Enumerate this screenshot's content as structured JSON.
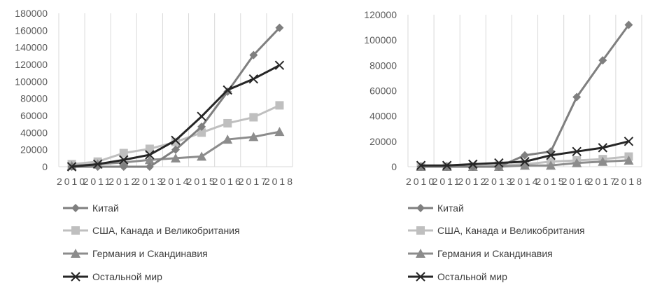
{
  "chart_data": [
    {
      "type": "line",
      "categories": [
        "2010",
        "2011",
        "2012",
        "2013",
        "2014",
        "2015",
        "2016",
        "2017",
        "2018"
      ],
      "ylim": [
        0,
        180000
      ],
      "yticks": [
        0,
        20000,
        40000,
        60000,
        80000,
        100000,
        120000,
        140000,
        160000,
        180000
      ],
      "grid": "vertical",
      "legend_position": "bottom",
      "series": [
        {
          "name": "Китай",
          "marker": "diamond",
          "color": "#7f7f7f",
          "values": [
            0,
            0,
            0,
            0,
            20000,
            47000,
            88000,
            131000,
            163000
          ]
        },
        {
          "name": "США, Канада и Великобритания",
          "marker": "square",
          "color": "#bfbfbf",
          "values": [
            3000,
            6000,
            16000,
            21000,
            29000,
            40000,
            51000,
            58000,
            72000
          ]
        },
        {
          "name": "Германия и Скандинавия",
          "marker": "triangle",
          "color": "#8c8c8c",
          "values": [
            1000,
            3000,
            5000,
            8000,
            10000,
            12000,
            32000,
            35000,
            41000
          ]
        },
        {
          "name": "Остальной мир",
          "marker": "x",
          "color": "#262626",
          "values": [
            0,
            3000,
            8000,
            14000,
            31000,
            59000,
            90000,
            103000,
            119000
          ]
        }
      ]
    },
    {
      "type": "line",
      "categories": [
        "2010",
        "2011",
        "2012",
        "2013",
        "2014",
        "2015",
        "2016",
        "2017",
        "2018"
      ],
      "ylim": [
        0,
        120000
      ],
      "yticks": [
        0,
        20000,
        40000,
        60000,
        80000,
        100000,
        120000
      ],
      "grid": "vertical",
      "legend_position": "bottom",
      "series": [
        {
          "name": "Китай",
          "marker": "diamond",
          "color": "#7f7f7f",
          "values": [
            0,
            0,
            0,
            0,
            9000,
            12000,
            55000,
            84000,
            112000
          ]
        },
        {
          "name": "США, Канада и Великобритания",
          "marker": "square",
          "color": "#bfbfbf",
          "values": [
            0,
            0,
            0,
            1000,
            2000,
            4000,
            5000,
            6000,
            8000
          ]
        },
        {
          "name": "Германия и Скандинавия",
          "marker": "triangle",
          "color": "#8c8c8c",
          "values": [
            0,
            0,
            0,
            0,
            1000,
            1000,
            3000,
            4000,
            5000
          ]
        },
        {
          "name": "Остальной мир",
          "marker": "x",
          "color": "#262626",
          "values": [
            1000,
            1000,
            2000,
            3000,
            4000,
            9000,
            12000,
            15000,
            20000
          ]
        }
      ]
    }
  ]
}
